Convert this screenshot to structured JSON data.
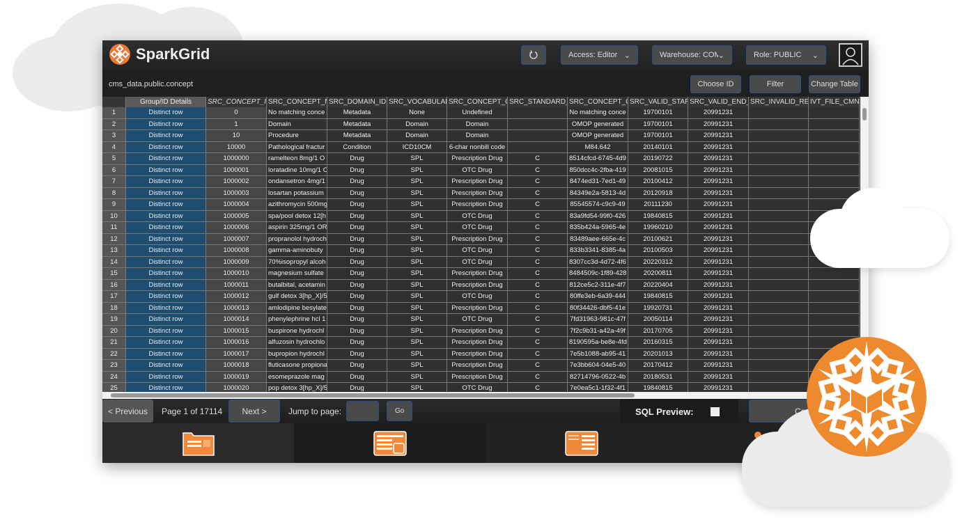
{
  "app": {
    "title": "SparkGrid",
    "accent": "#f08a3a"
  },
  "toolbar": {
    "refresh_icon": "refresh-icon",
    "access": "Access: Editor",
    "warehouse": "Warehouse: COMPU",
    "role": "Role: PUBLIC",
    "user_icon": "user-icon"
  },
  "subheader": {
    "table_name": "cms_data.public.concept",
    "choose_id": "Choose ID",
    "filter": "Filter",
    "change_table": "Change Table"
  },
  "grid": {
    "columns": [
      "Group/ID Details",
      "SRC_CONCEPT_ID",
      "SRC_CONCEPT_N",
      "SRC_DOMAIN_ID",
      "SRC_VOCABULAR",
      "SRC_CONCEPT_C",
      "SRC_STANDARD_(",
      "SRC_CONCEPT_C",
      "SRC_VALID_STAR",
      "SRC_VALID_END_",
      "SRC_INVALID_RE/",
      "IVT_FILE_CMN"
    ],
    "rows": [
      [
        "1",
        "Distinct row",
        "0",
        "No matching conce",
        "Metadata",
        "None",
        "Undefined",
        "",
        "No matching conce",
        "19700101",
        "20991231",
        "",
        ""
      ],
      [
        "2",
        "Distinct row",
        "1",
        "Domain",
        "Metadata",
        "Domain",
        "Domain",
        "",
        "OMOP generated",
        "19700101",
        "20991231",
        "",
        ""
      ],
      [
        "3",
        "Distinct row",
        "10",
        "Procedure",
        "Metadata",
        "Domain",
        "Domain",
        "",
        "OMOP generated",
        "19700101",
        "20991231",
        "",
        ""
      ],
      [
        "4",
        "Distinct row",
        "10000",
        "Pathological fractur",
        "Condition",
        "ICD10CM",
        "6-char nonbill code",
        "",
        "M84.642",
        "20140101",
        "20991231",
        "",
        ""
      ],
      [
        "5",
        "Distinct row",
        "1000000",
        "ramelteon 8mg/1 O",
        "Drug",
        "SPL",
        "Prescription Drug",
        "C",
        "8514cfcd-6745-4d9",
        "20190722",
        "20991231",
        "",
        ""
      ],
      [
        "6",
        "Distinct row",
        "1000001",
        "loratadine 10mg/1 O",
        "Drug",
        "SPL",
        "OTC Drug",
        "C",
        "850dcc4c-2fba-419",
        "20081015",
        "20991231",
        "",
        ""
      ],
      [
        "7",
        "Distinct row",
        "1000002",
        "ondansetron 4mg/1",
        "Drug",
        "SPL",
        "Prescription Drug",
        "C",
        "8474ed31-7ed1-49",
        "20100412",
        "20991231",
        "",
        ""
      ],
      [
        "8",
        "Distinct row",
        "1000003",
        "losartan potassium",
        "Drug",
        "SPL",
        "Prescription Drug",
        "C",
        "84349e2a-5813-4d",
        "20120918",
        "20991231",
        "",
        ""
      ],
      [
        "9",
        "Distinct row",
        "1000004",
        "azithromycin 500mg",
        "Drug",
        "SPL",
        "Prescription Drug",
        "C",
        "85545574-c9c9-49",
        "20111230",
        "20991231",
        "",
        ""
      ],
      [
        "10",
        "Distinct row",
        "1000005",
        "spa/pool detox 12[h",
        "Drug",
        "SPL",
        "OTC Drug",
        "C",
        "83a9fd54-99f0-426",
        "19840815",
        "20991231",
        "",
        ""
      ],
      [
        "11",
        "Distinct row",
        "1000006",
        "aspirin 325mg/1 OR",
        "Drug",
        "SPL",
        "OTC Drug",
        "C",
        "835b424a-5965-4e",
        "19960210",
        "20991231",
        "",
        ""
      ],
      [
        "12",
        "Distinct row",
        "1000007",
        "propranolol hydroch",
        "Drug",
        "SPL",
        "Prescription Drug",
        "C",
        "83489aee-665e-4c",
        "20100621",
        "20991231",
        "",
        ""
      ],
      [
        "13",
        "Distinct row",
        "1000008",
        "gamma-aminobuty",
        "Drug",
        "SPL",
        "OTC Drug",
        "C",
        "833b3341-8385-4a",
        "20100503",
        "20991231",
        "",
        ""
      ],
      [
        "14",
        "Distinct row",
        "1000009",
        "70%isopropyl alcoh",
        "Drug",
        "SPL",
        "OTC Drug",
        "C",
        "8307cc3d-4d72-4f6",
        "20220312",
        "20991231",
        "",
        ""
      ],
      [
        "15",
        "Distinct row",
        "1000010",
        "magnesium sulfate",
        "Drug",
        "SPL",
        "Prescription Drug",
        "C",
        "8484509c-1f89-428",
        "20200811",
        "20991231",
        "",
        ""
      ],
      [
        "16",
        "Distinct row",
        "1000011",
        "butalbital, acetamin",
        "Drug",
        "SPL",
        "Prescription Drug",
        "C",
        "812ce5c2-311e-4f7",
        "20220404",
        "20991231",
        "",
        ""
      ],
      [
        "17",
        "Distinct row",
        "1000012",
        "gulf detox 3[hp_X]/5",
        "Drug",
        "SPL",
        "OTC Drug",
        "C",
        "80ffe3eb-6a39-444",
        "19840815",
        "20991231",
        "",
        ""
      ],
      [
        "18",
        "Distinct row",
        "1000013",
        "amlodipine besylate",
        "Drug",
        "SPL",
        "Prescription Drug",
        "C",
        "80f34426-dbf5-41e",
        "19920731",
        "20991231",
        "",
        ""
      ],
      [
        "19",
        "Distinct row",
        "1000014",
        "phenylephrine hcl 1",
        "Drug",
        "SPL",
        "OTC Drug",
        "C",
        "7fd31963-981c-47f",
        "20050114",
        "20991231",
        "",
        ""
      ],
      [
        "20",
        "Distinct row",
        "1000015",
        "buspirone hydrochl",
        "Drug",
        "SPL",
        "Prescription Drug",
        "C",
        "7f2c9b31-a42a-49f",
        "20170705",
        "20991231",
        "",
        ""
      ],
      [
        "21",
        "Distinct row",
        "1000016",
        "alfuzosin hydrochlo",
        "Drug",
        "SPL",
        "Prescription Drug",
        "C",
        "8190595a-be8e-4fd",
        "20160315",
        "20991231",
        "",
        ""
      ],
      [
        "22",
        "Distinct row",
        "1000017",
        "bupropion hydrochl",
        "Drug",
        "SPL",
        "Prescription Drug",
        "C",
        "7e5b1088-ab95-41",
        "20201013",
        "20991231",
        "",
        ""
      ],
      [
        "23",
        "Distinct row",
        "1000018",
        "fluticasone propiona",
        "Drug",
        "SPL",
        "Prescription Drug",
        "C",
        "7e3bb604-04e5-40",
        "20170412",
        "20991231",
        "",
        ""
      ],
      [
        "24",
        "Distinct row",
        "1000019",
        "esomeprazole mag",
        "Drug",
        "SPL",
        "Prescription Drug",
        "C",
        "82714796-0522-4b",
        "20180531",
        "20991231",
        "",
        ""
      ],
      [
        "25",
        "Distinct row",
        "1000020",
        "pop detox 3[hp_X]/5",
        "Drug",
        "SPL",
        "OTC Drug",
        "C",
        "7e0ea5c1-1f32-4f1",
        "19840815",
        "20991231",
        "",
        ""
      ]
    ]
  },
  "pager": {
    "previous": "< Previous",
    "page_info": "Page 1 of 17114",
    "next": "Next >",
    "jump_label": "Jump to page:",
    "jump_value": "",
    "go": "Go",
    "sql_preview": "SQL Preview:",
    "sql_checked": false,
    "right_button": "Co"
  },
  "tabs": [
    {
      "icon": "folder-card-icon"
    },
    {
      "icon": "table-panel-icon"
    },
    {
      "icon": "document-list-icon"
    },
    {
      "icon": "tools-icon"
    }
  ]
}
